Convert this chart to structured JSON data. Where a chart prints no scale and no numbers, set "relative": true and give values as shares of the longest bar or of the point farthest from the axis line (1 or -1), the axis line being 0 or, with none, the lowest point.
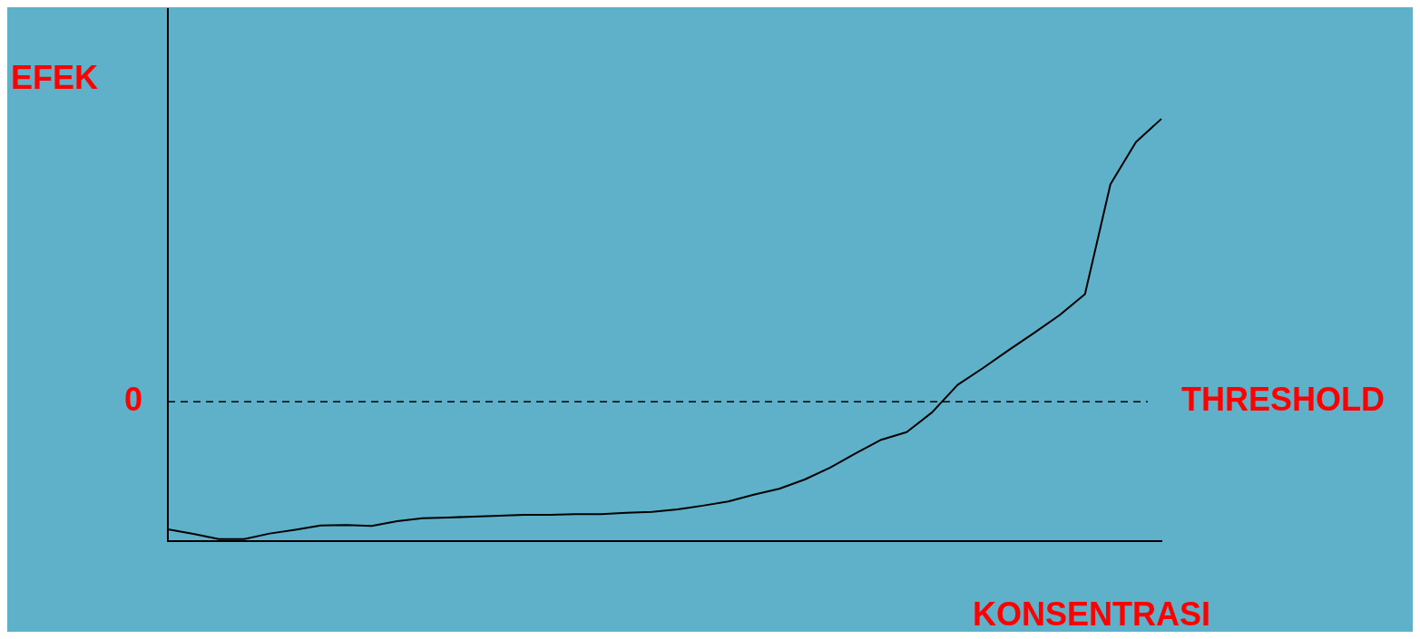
{
  "chart_data": {
    "type": "line",
    "xlabel": "KONSENTRASI",
    "ylabel": "EFEK",
    "relative": true,
    "grid": false,
    "legend": false,
    "marker": "none",
    "line_style": "solid",
    "categories": [
      null,
      null,
      null,
      null,
      null,
      null,
      null,
      null,
      null,
      null,
      null,
      null,
      null,
      null,
      null,
      null,
      null,
      null,
      null,
      null,
      null,
      null,
      null,
      null,
      null,
      null,
      null,
      null,
      null,
      null,
      null,
      null,
      null,
      null,
      null,
      null,
      null,
      null,
      null,
      null
    ],
    "series": [
      {
        "color": "#000000",
        "values": [
          0.028,
          0.017,
          0.005,
          0.005,
          0.018,
          0.027,
          0.037,
          0.038,
          0.036,
          0.047,
          0.054,
          0.056,
          0.058,
          0.06,
          0.062,
          0.062,
          0.064,
          0.064,
          0.067,
          0.069,
          0.075,
          0.084,
          0.094,
          0.11,
          0.124,
          0.146,
          0.174,
          0.208,
          0.24,
          0.258,
          0.305,
          0.37,
          0.41,
          0.452,
          0.493,
          0.535,
          0.585,
          0.845,
          0.945,
          1
        ]
      }
    ],
    "ref_lines": [
      {
        "axis": "y",
        "value": 0.33,
        "label": "THRESHOLD",
        "color": "#000000",
        "line_style": "dashed"
      }
    ],
    "annotations": [
      "0"
    ]
  }
}
